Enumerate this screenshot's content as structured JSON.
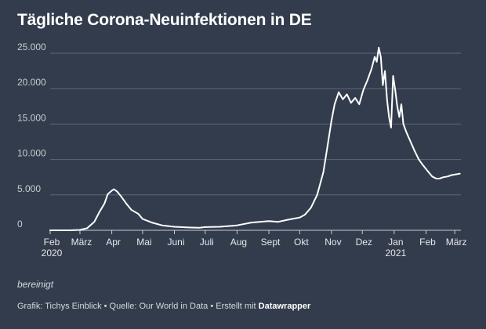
{
  "chart_data": {
    "type": "line",
    "title": "Tägliche Corona-Neuinfektionen in DE",
    "xlabel": "",
    "ylabel": "",
    "x_start": "2020-02-01",
    "x_end": "2021-03-07",
    "ylim": [
      0,
      25000
    ],
    "y_ticks": [
      "0",
      "5.000",
      "10.000",
      "15.000",
      "20.000",
      "25.000"
    ],
    "y_tick_values": [
      0,
      5000,
      10000,
      15000,
      20000,
      25000
    ],
    "x_ticks": [
      {
        "label": "Feb",
        "sub": "2020",
        "date": "2020-02-01"
      },
      {
        "label": "März",
        "sub": "",
        "date": "2020-03-01"
      },
      {
        "label": "Apr",
        "sub": "",
        "date": "2020-04-01"
      },
      {
        "label": "Mai",
        "sub": "",
        "date": "2020-05-01"
      },
      {
        "label": "Juni",
        "sub": "",
        "date": "2020-06-01"
      },
      {
        "label": "Juli",
        "sub": "",
        "date": "2020-07-01"
      },
      {
        "label": "Aug",
        "sub": "",
        "date": "2020-08-01"
      },
      {
        "label": "Sept",
        "sub": "",
        "date": "2020-09-01"
      },
      {
        "label": "Okt",
        "sub": "",
        "date": "2020-10-01"
      },
      {
        "label": "Nov",
        "sub": "",
        "date": "2020-11-01"
      },
      {
        "label": "Dez",
        "sub": "",
        "date": "2020-12-01"
      },
      {
        "label": "Jan",
        "sub": "2021",
        "date": "2021-01-01"
      },
      {
        "label": "Feb",
        "sub": "",
        "date": "2021-02-01"
      },
      {
        "label": "März",
        "sub": "",
        "date": "2021-03-01"
      }
    ],
    "grid": true,
    "line_color": "#ffffff",
    "series": [
      {
        "x": [
          "2020-02-01",
          "2020-02-20",
          "2020-03-01",
          "2020-03-08",
          "2020-03-15",
          "2020-03-20",
          "2020-03-25",
          "2020-03-28",
          "2020-04-01",
          "2020-04-03",
          "2020-04-06",
          "2020-04-10",
          "2020-04-15",
          "2020-04-20",
          "2020-04-27",
          "2020-05-01",
          "2020-05-10",
          "2020-05-20",
          "2020-06-01",
          "2020-06-15",
          "2020-06-25",
          "2020-07-01",
          "2020-07-15",
          "2020-08-01",
          "2020-08-15",
          "2020-09-01",
          "2020-09-10",
          "2020-09-20",
          "2020-10-01",
          "2020-10-06",
          "2020-10-12",
          "2020-10-18",
          "2020-10-24",
          "2020-10-28",
          "2020-11-01",
          "2020-11-04",
          "2020-11-08",
          "2020-11-12",
          "2020-11-16",
          "2020-11-20",
          "2020-11-24",
          "2020-11-28",
          "2020-12-02",
          "2020-12-06",
          "2020-12-10",
          "2020-12-13",
          "2020-12-15",
          "2020-12-17",
          "2020-12-19",
          "2020-12-21",
          "2020-12-23",
          "2020-12-25",
          "2020-12-27",
          "2020-12-29",
          "2020-12-31",
          "2021-01-02",
          "2021-01-04",
          "2021-01-06",
          "2021-01-08",
          "2021-01-10",
          "2021-01-13",
          "2021-01-17",
          "2021-01-21",
          "2021-01-25",
          "2021-01-29",
          "2021-02-03",
          "2021-02-07",
          "2021-02-11",
          "2021-02-14",
          "2021-02-18",
          "2021-02-22",
          "2021-02-26",
          "2021-03-02",
          "2021-03-06"
        ],
        "values": [
          0,
          0,
          50,
          300,
          1200,
          2600,
          3800,
          5100,
          5600,
          5800,
          5500,
          4800,
          3800,
          2900,
          2300,
          1600,
          1100,
          700,
          500,
          400,
          350,
          450,
          500,
          700,
          1100,
          1300,
          1200,
          1500,
          1800,
          2200,
          3200,
          5000,
          8200,
          11800,
          15500,
          17800,
          19500,
          18500,
          19200,
          18000,
          18700,
          17800,
          19800,
          21200,
          22800,
          24500,
          23800,
          25800,
          24500,
          20500,
          22500,
          18500,
          16000,
          14500,
          21800,
          19800,
          17500,
          16000,
          17800,
          15000,
          13800,
          12500,
          11200,
          10000,
          9200,
          8300,
          7600,
          7300,
          7300,
          7500,
          7600,
          7800,
          7900,
          8000
        ]
      }
    ]
  },
  "note": "bereinigt",
  "footer": {
    "text": "Grafik: Tichys Einblick • Quelle: Our World in Data • Erstellt mit ",
    "brand": "Datawrapper"
  }
}
